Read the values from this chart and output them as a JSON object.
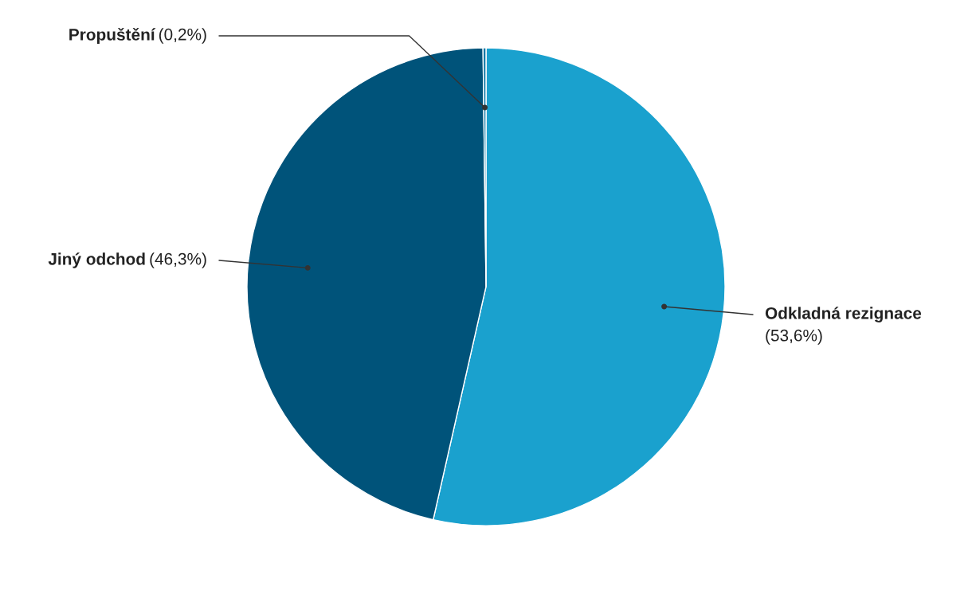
{
  "chart_data": {
    "type": "pie",
    "categories": [
      "Odkladná rezignace",
      "Jiný odchod",
      "Propuštění"
    ],
    "values": [
      53.6,
      46.3,
      0.2
    ],
    "value_labels": [
      "(53,6%)",
      "(46,3%)",
      "(0,2%)"
    ],
    "colors": [
      "#1aa1ce",
      "#00537a",
      "#0d77a6"
    ]
  }
}
